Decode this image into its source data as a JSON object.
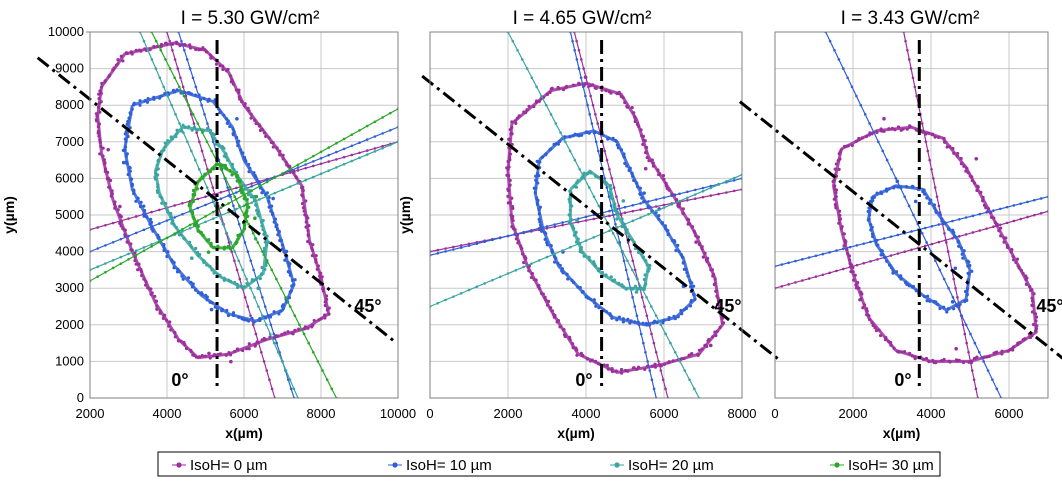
{
  "chart_data": [
    {
      "type": "scatter",
      "title": "I = 5.30 GW/cm²",
      "xlabel": "x(µm)",
      "ylabel": "y(µm)",
      "xlim": [
        2000,
        10000
      ],
      "ylim": [
        0,
        10000
      ],
      "xticks": [
        "2000",
        "4000",
        "6000",
        "8000",
        "10000"
      ],
      "yticks": [
        "0",
        "1000",
        "2000",
        "3000",
        "4000",
        "5000",
        "6000",
        "7000",
        "8000",
        "9000",
        "10000"
      ],
      "grid": true,
      "center": [
        5300,
        5400
      ],
      "angle_labels": [
        "0°",
        "45°"
      ],
      "series": [
        {
          "name": "IsoH= 0 µm",
          "contour": [
            [
              2300,
              8500
            ],
            [
              2900,
              9400
            ],
            [
              4200,
              9700
            ],
            [
              5000,
              9500
            ],
            [
              5600,
              8900
            ],
            [
              6000,
              8000
            ],
            [
              6800,
              6900
            ],
            [
              7500,
              5800
            ],
            [
              7700,
              4300
            ],
            [
              8000,
              3300
            ],
            [
              8200,
              2300
            ],
            [
              7600,
              1900
            ],
            [
              6600,
              1600
            ],
            [
              5600,
              1200
            ],
            [
              4800,
              1100
            ],
            [
              4300,
              1600
            ],
            [
              3700,
              2600
            ],
            [
              3100,
              4000
            ],
            [
              2600,
              5400
            ],
            [
              2300,
              6700
            ],
            [
              2200,
              7700
            ]
          ],
          "fit_lines": [
            [
              [
                4000,
                10000
              ],
              [
                6800,
                0
              ]
            ],
            [
              [
                2000,
                4600
              ],
              [
                10000,
                7000
              ]
            ]
          ]
        },
        {
          "name": "IsoH= 10 µm",
          "contour": [
            [
              3100,
              8000
            ],
            [
              4300,
              8400
            ],
            [
              5200,
              8100
            ],
            [
              5700,
              7400
            ],
            [
              6000,
              6500
            ],
            [
              6600,
              5500
            ],
            [
              7000,
              4200
            ],
            [
              7300,
              3100
            ],
            [
              7000,
              2400
            ],
            [
              6300,
              2100
            ],
            [
              5600,
              2300
            ],
            [
              4900,
              2800
            ],
            [
              4200,
              3600
            ],
            [
              3600,
              4700
            ],
            [
              3100,
              5700
            ],
            [
              2900,
              6800
            ]
          ],
          "fit_lines": [
            [
              [
                4300,
                10000
              ],
              [
                7300,
                0
              ]
            ],
            [
              [
                2000,
                4000
              ],
              [
                10000,
                7400
              ]
            ]
          ]
        },
        {
          "name": "IsoH= 20 µm",
          "contour": [
            [
              3900,
              6800
            ],
            [
              4400,
              7400
            ],
            [
              5100,
              7300
            ],
            [
              5500,
              6700
            ],
            [
              5800,
              6100
            ],
            [
              6300,
              5400
            ],
            [
              6600,
              4300
            ],
            [
              6500,
              3400
            ],
            [
              6000,
              3000
            ],
            [
              5400,
              3300
            ],
            [
              4800,
              3900
            ],
            [
              4200,
              4700
            ],
            [
              3800,
              5600
            ],
            [
              3700,
              6200
            ]
          ],
          "fit_lines": [
            [
              [
                3300,
                10000
              ],
              [
                7400,
                0
              ]
            ],
            [
              [
                2000,
                3500
              ],
              [
                10000,
                7000
              ]
            ]
          ]
        },
        {
          "name": "IsoH= 30 µm",
          "contour": [
            [
              4800,
              5900
            ],
            [
              5300,
              6400
            ],
            [
              5800,
              6100
            ],
            [
              6100,
              5300
            ],
            [
              6000,
              4600
            ],
            [
              5700,
              4100
            ],
            [
              5200,
              4100
            ],
            [
              4800,
              4600
            ],
            [
              4600,
              5200
            ]
          ],
          "fit_lines": [
            [
              [
                3600,
                10000
              ],
              [
                8400,
                0
              ]
            ],
            [
              [
                2000,
                3200
              ],
              [
                10000,
                7900
              ]
            ]
          ]
        }
      ]
    },
    {
      "type": "scatter",
      "title": "I = 4.65 GW/cm²",
      "xlabel": "x(µm)",
      "ylabel": "y(µm)",
      "xlim": [
        0,
        8000
      ],
      "ylim": [
        0,
        10000
      ],
      "xticks": [
        "0",
        "2000",
        "4000",
        "6000",
        "8000"
      ],
      "yticks": [],
      "grid": true,
      "center": [
        4400,
        4900
      ],
      "angle_labels": [
        "0°",
        "45°"
      ],
      "series": [
        {
          "name": "IsoH= 0 µm",
          "contour": [
            [
              2100,
              7500
            ],
            [
              3100,
              8400
            ],
            [
              4000,
              8600
            ],
            [
              4900,
              8300
            ],
            [
              5300,
              7600
            ],
            [
              5600,
              6600
            ],
            [
              6200,
              5600
            ],
            [
              6800,
              4500
            ],
            [
              7300,
              3300
            ],
            [
              7500,
              2000
            ],
            [
              6900,
              1200
            ],
            [
              5900,
              900
            ],
            [
              4800,
              700
            ],
            [
              3800,
              1200
            ],
            [
              3100,
              2400
            ],
            [
              2500,
              3600
            ],
            [
              2100,
              4800
            ],
            [
              2000,
              6200
            ]
          ],
          "fit_lines": [
            [
              [
                3700,
                10000
              ],
              [
                6100,
                0
              ]
            ],
            [
              [
                0,
                4000
              ],
              [
                8000,
                5700
              ]
            ]
          ]
        },
        {
          "name": "IsoH= 10 µm",
          "contour": [
            [
              2800,
              6500
            ],
            [
              3400,
              7100
            ],
            [
              4200,
              7300
            ],
            [
              4800,
              7000
            ],
            [
              5100,
              6300
            ],
            [
              5500,
              5400
            ],
            [
              6000,
              4700
            ],
            [
              6500,
              3800
            ],
            [
              6800,
              2700
            ],
            [
              6300,
              2200
            ],
            [
              5500,
              2000
            ],
            [
              4700,
              2200
            ],
            [
              4000,
              2800
            ],
            [
              3300,
              3600
            ],
            [
              2900,
              4600
            ],
            [
              2700,
              5600
            ]
          ],
          "fit_lines": [
            [
              [
                3600,
                10000
              ],
              [
                5800,
                0
              ]
            ],
            [
              [
                0,
                3900
              ],
              [
                8000,
                6000
              ]
            ]
          ]
        },
        {
          "name": "IsoH= 20 µm",
          "contour": [
            [
              3600,
              5700
            ],
            [
              4100,
              6200
            ],
            [
              4600,
              5800
            ],
            [
              4800,
              5000
            ],
            [
              5200,
              4300
            ],
            [
              5600,
              3600
            ],
            [
              5500,
              3000
            ],
            [
              5000,
              3000
            ],
            [
              4400,
              3400
            ],
            [
              3900,
              4000
            ],
            [
              3600,
              4800
            ]
          ],
          "fit_lines": [
            [
              [
                2000,
                10000
              ],
              [
                6900,
                0
              ]
            ],
            [
              [
                0,
                2500
              ],
              [
                8000,
                6100
              ]
            ]
          ]
        }
      ]
    },
    {
      "type": "scatter",
      "title": "I = 3.43 GW/cm²",
      "xlabel": "x(µm)",
      "ylabel": "",
      "xlim": [
        0,
        7000
      ],
      "ylim": [
        0,
        10000
      ],
      "xticks": [
        "0",
        "2000",
        "4000",
        "6000"
      ],
      "yticks": [],
      "grid": true,
      "center": [
        3700,
        4200
      ],
      "angle_labels": [
        "0°",
        "45°"
      ],
      "series": [
        {
          "name": "IsoH= 0 µm",
          "contour": [
            [
              1700,
              6800
            ],
            [
              2600,
              7300
            ],
            [
              3500,
              7400
            ],
            [
              4300,
              7100
            ],
            [
              4900,
              6300
            ],
            [
              5500,
              5100
            ],
            [
              6100,
              3900
            ],
            [
              6600,
              2900
            ],
            [
              6700,
              1800
            ],
            [
              6000,
              1300
            ],
            [
              5000,
              1000
            ],
            [
              4000,
              1000
            ],
            [
              3100,
              1300
            ],
            [
              2400,
              2200
            ],
            [
              2000,
              3400
            ],
            [
              1700,
              4600
            ],
            [
              1500,
              5800
            ]
          ],
          "fit_lines": [
            [
              [
                3300,
                10000
              ],
              [
                5200,
                0
              ]
            ],
            [
              [
                0,
                3000
              ],
              [
                7000,
                5100
              ]
            ]
          ]
        },
        {
          "name": "IsoH= 10 µm",
          "contour": [
            [
              2500,
              5500
            ],
            [
              3100,
              5800
            ],
            [
              3800,
              5700
            ],
            [
              4200,
              5000
            ],
            [
              4700,
              4300
            ],
            [
              5000,
              3500
            ],
            [
              4900,
              2700
            ],
            [
              4400,
              2400
            ],
            [
              3800,
              2800
            ],
            [
              3100,
              3400
            ],
            [
              2600,
              4200
            ],
            [
              2400,
              4900
            ]
          ],
          "fit_lines": [
            [
              [
                1300,
                10000
              ],
              [
                5800,
                0
              ]
            ],
            [
              [
                0,
                3600
              ],
              [
                7000,
                5500
              ]
            ]
          ]
        }
      ]
    }
  ],
  "legend": [
    {
      "label": "IsoH= 0 µm",
      "color": "#9b2f9c"
    },
    {
      "label": "IsoH= 10 µm",
      "color": "#2f5fd6"
    },
    {
      "label": "IsoH= 20 µm",
      "color": "#3aa5a0"
    },
    {
      "label": "IsoH= 30 µm",
      "color": "#2aa52a"
    }
  ]
}
